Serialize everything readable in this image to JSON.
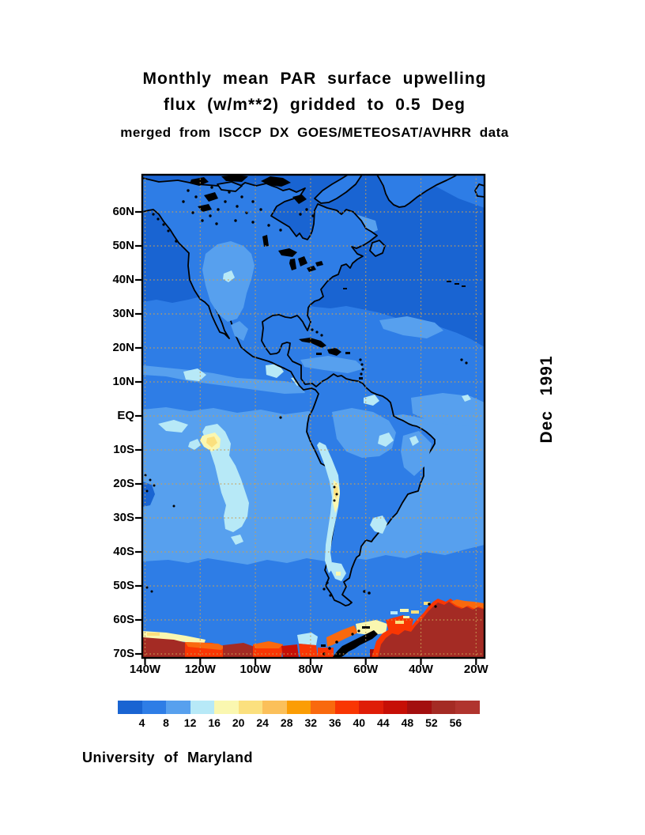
{
  "title": {
    "line1": "Monthly mean PAR surface upwelling",
    "line2": "flux (w/m**2) gridded to 0.5 Deg",
    "line3": "merged from ISCCP DX GOES/METEOSAT/AVHRR data"
  },
  "date_label": "Dec 1991",
  "credit": "University of Maryland",
  "map": {
    "lat_labels": [
      "60N",
      "50N",
      "40N",
      "30N",
      "20N",
      "10N",
      "EQ",
      "10S",
      "20S",
      "30S",
      "40S",
      "50S",
      "60S",
      "70S"
    ],
    "lon_labels": [
      "140W",
      "120W",
      "100W",
      "80W",
      "60W",
      "40W",
      "20W"
    ]
  },
  "colorbar": {
    "tick_labels": [
      "4",
      "8",
      "12",
      "16",
      "20",
      "24",
      "28",
      "32",
      "36",
      "40",
      "44",
      "48",
      "52",
      "56"
    ],
    "colors": [
      "#1964D2",
      "#2E7DE6",
      "#57A0EE",
      "#B7E9F7",
      "#FAF7B0",
      "#FBE07E",
      "#FBC05A",
      "#FB9D04",
      "#F9690E",
      "#F93603",
      "#DF1D08",
      "#C60F06",
      "#A30F0F",
      "#A42B24",
      "#B0342E"
    ]
  },
  "palette": {
    "c1": "#1964D2",
    "c2": "#2E7DE6",
    "c3": "#57A0EE",
    "c4": "#B7E9F7",
    "c5": "#FAF7B0",
    "c6": "#FBE07E",
    "c7": "#FBC05A",
    "c8": "#FB9D04",
    "c9": "#F9690E",
    "c10": "#F93603",
    "c11": "#DF1D08",
    "c12": "#C60F06",
    "c13": "#A30F0F",
    "c14": "#A42B24",
    "c15": "#B0342E",
    "grid": "#C99F55",
    "coast": "#000000",
    "frame": "#000000",
    "page_bg": "#FFFFFF"
  },
  "chart_data": {
    "type": "heatmap",
    "title": "Monthly mean PAR surface upwelling flux (w/m**2) gridded to 0.5 Deg",
    "subtitle": "merged from ISCCP DX GOES/METEOSAT/AVHRR data",
    "date": "Dec 1991",
    "units": "w/m**2",
    "x_ticks": [
      "140W",
      "120W",
      "100W",
      "80W",
      "60W",
      "40W",
      "20W"
    ],
    "y_ticks": [
      "60N",
      "50N",
      "40N",
      "30N",
      "20N",
      "10N",
      "EQ",
      "10S",
      "20S",
      "30S",
      "40S",
      "50S",
      "60S",
      "70S"
    ],
    "colorbar_levels": [
      4,
      8,
      12,
      16,
      20,
      24,
      28,
      32,
      36,
      40,
      44,
      48,
      52,
      56
    ],
    "colorbar_colors": [
      "#1964D2",
      "#2E7DE6",
      "#57A0EE",
      "#B7E9F7",
      "#FAF7B0",
      "#FBE07E",
      "#FBC05A",
      "#FB9D04",
      "#F9690E",
      "#F93603",
      "#DF1D08",
      "#C60F06",
      "#A30F0F",
      "#A42B24",
      "#B0342E"
    ],
    "legend_position": "bottom",
    "grid": true,
    "notable_values": "Ocean mostly 4-12 w/m**2; bright cloud region 12-24 in SE Pacific near 110W 5S-30S; Andes 12-24; highest values >40 south of 60S (Antarctic sea ice)",
    "source_credit": "University of Maryland"
  }
}
